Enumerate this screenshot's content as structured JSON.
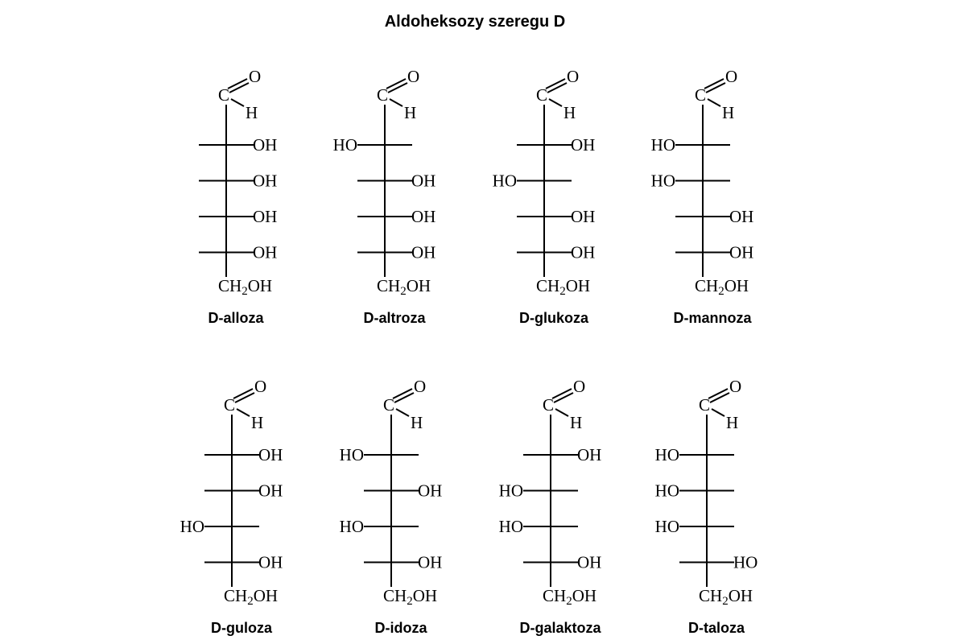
{
  "title": "Aldoheksozy szeregu D",
  "atoms": {
    "carbon": "C",
    "oxygen": "O",
    "hydrogen": "H",
    "bottom": "CH",
    "bottom_sub": "2",
    "bottom_end": "OH"
  },
  "molecules": [
    {
      "name": "D-alloza",
      "substituents": [
        {
          "side": "right",
          "label": "OH"
        },
        {
          "side": "right",
          "label": "OH"
        },
        {
          "side": "right",
          "label": "OH"
        },
        {
          "side": "right",
          "label": "OH"
        }
      ]
    },
    {
      "name": "D-altroza",
      "substituents": [
        {
          "side": "left",
          "label": "HO"
        },
        {
          "side": "right",
          "label": "OH"
        },
        {
          "side": "right",
          "label": "OH"
        },
        {
          "side": "right",
          "label": "OH"
        }
      ]
    },
    {
      "name": "D-glukoza",
      "substituents": [
        {
          "side": "right",
          "label": "OH"
        },
        {
          "side": "left",
          "label": "HO"
        },
        {
          "side": "right",
          "label": "OH"
        },
        {
          "side": "right",
          "label": "OH"
        }
      ]
    },
    {
      "name": "D-mannoza",
      "substituents": [
        {
          "side": "left",
          "label": "HO"
        },
        {
          "side": "left",
          "label": "HO"
        },
        {
          "side": "right",
          "label": "OH"
        },
        {
          "side": "right",
          "label": "OH"
        }
      ]
    },
    {
      "name": "D-guloza",
      "substituents": [
        {
          "side": "right",
          "label": "OH"
        },
        {
          "side": "right",
          "label": "OH"
        },
        {
          "side": "left",
          "label": "HO"
        },
        {
          "side": "right",
          "label": "OH"
        }
      ]
    },
    {
      "name": "D-idoza",
      "substituents": [
        {
          "side": "left",
          "label": "HO"
        },
        {
          "side": "right",
          "label": "OH"
        },
        {
          "side": "left",
          "label": "HO"
        },
        {
          "side": "right",
          "label": "OH"
        }
      ]
    },
    {
      "name": "D-galaktoza",
      "substituents": [
        {
          "side": "right",
          "label": "OH"
        },
        {
          "side": "left",
          "label": "HO"
        },
        {
          "side": "left",
          "label": "HO"
        },
        {
          "side": "right",
          "label": "OH"
        }
      ]
    },
    {
      "name": "D-taloza",
      "substituents": [
        {
          "side": "left",
          "label": "HO"
        },
        {
          "side": "left",
          "label": "HO"
        },
        {
          "side": "left",
          "label": "HO"
        },
        {
          "side": "right",
          "label": "HO"
        }
      ]
    }
  ]
}
